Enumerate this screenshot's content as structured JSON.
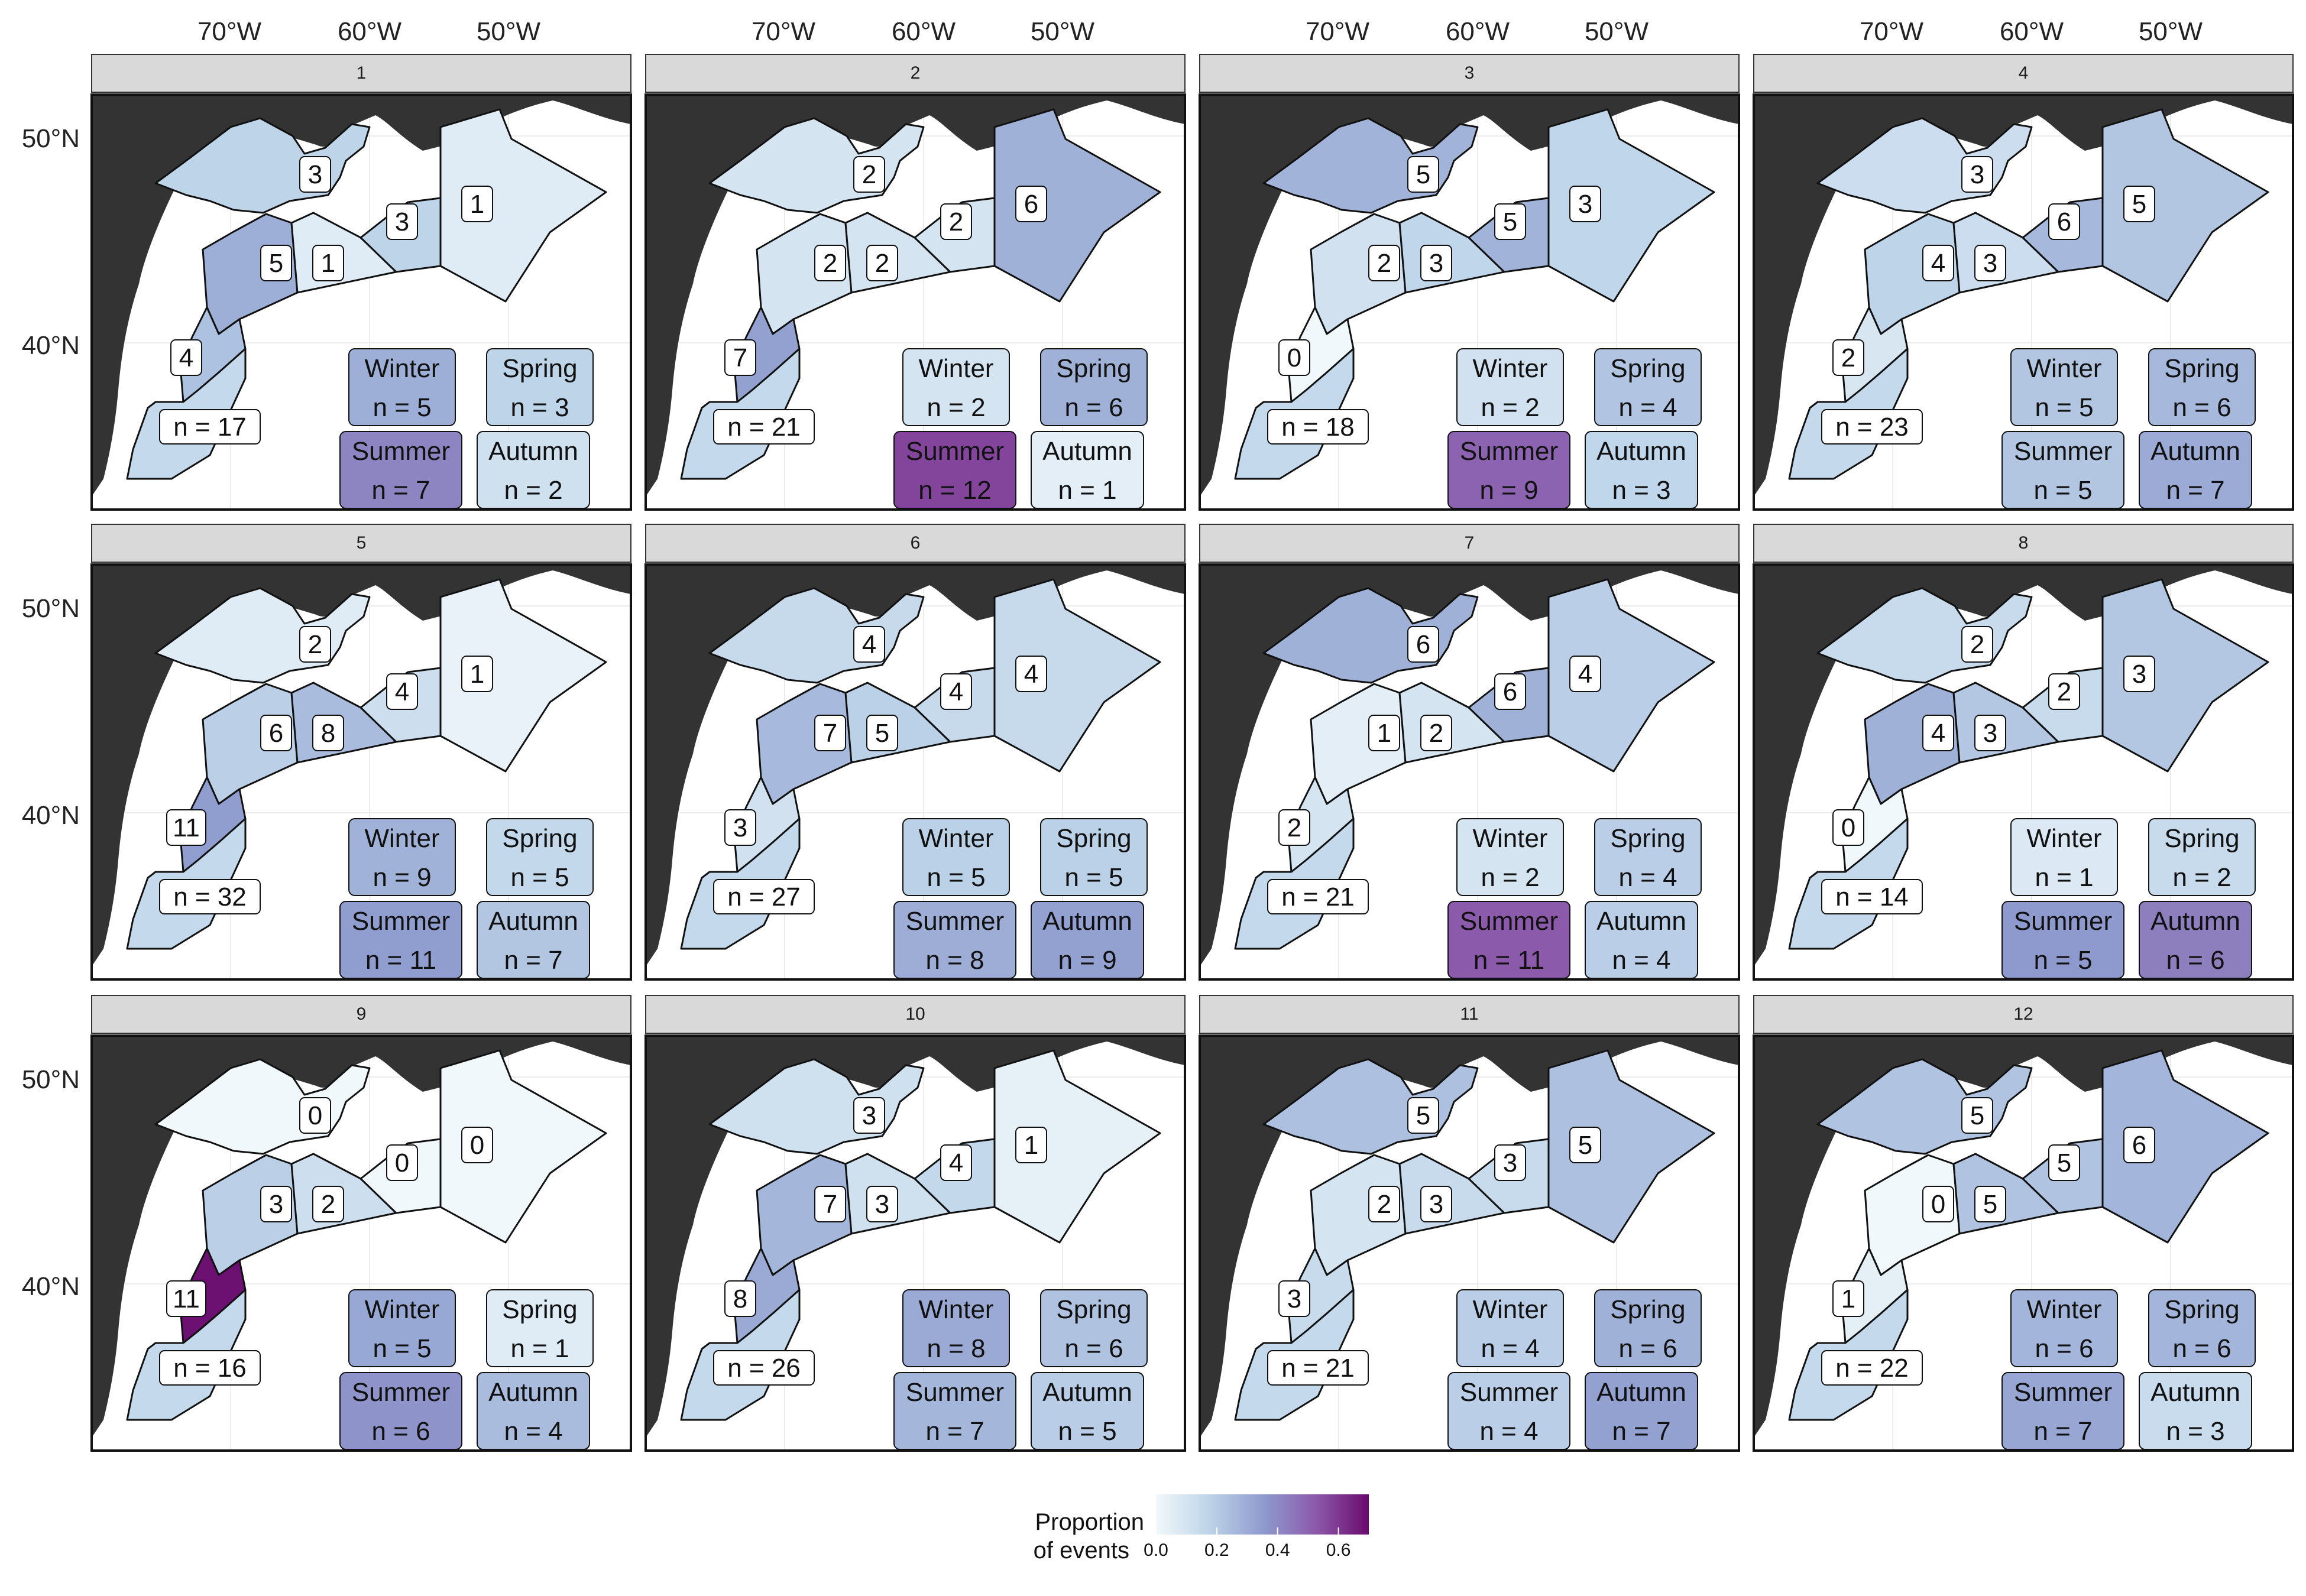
{
  "chart_data": {
    "type": "choropleth-map-facets",
    "x_tick_labels": [
      "70°W",
      "60°W",
      "50°W"
    ],
    "y_tick_labels": [
      "50°N",
      "40°N"
    ],
    "legend": {
      "title_line1": "Proportion",
      "title_line2": "of events",
      "ticks": [
        "0.0",
        "0.2",
        "0.4",
        "0.6"
      ],
      "range": [
        0,
        0.7
      ],
      "colors": [
        "#f1f8fb",
        "#bed4e9",
        "#8e9cce",
        "#8c5aab",
        "#6a0a6e"
      ],
      "placement": "bottom"
    },
    "season_names": [
      "Winter",
      "Spring",
      "Summer",
      "Autumn"
    ],
    "region_order": [
      "laurentian",
      "newfoundland",
      "gulf_west",
      "gulf_east",
      "cabot",
      "scotian",
      "gulf_maine"
    ],
    "panels": [
      {
        "label": "1",
        "total": "n = 17",
        "regions": [
          3,
          1,
          5,
          1,
          3,
          4,
          null
        ],
        "seasons": [
          5,
          3,
          7,
          2
        ]
      },
      {
        "label": "2",
        "total": "n = 21",
        "regions": [
          2,
          6,
          2,
          2,
          2,
          7,
          null
        ],
        "seasons": [
          2,
          6,
          12,
          1
        ]
      },
      {
        "label": "3",
        "total": "n = 18",
        "regions": [
          5,
          3,
          2,
          3,
          5,
          0,
          null
        ],
        "seasons": [
          2,
          4,
          9,
          3
        ]
      },
      {
        "label": "4",
        "total": "n = 23",
        "regions": [
          3,
          5,
          4,
          3,
          6,
          2,
          null
        ],
        "seasons": [
          5,
          6,
          5,
          7
        ]
      },
      {
        "label": "5",
        "total": "n = 32",
        "regions": [
          2,
          1,
          6,
          8,
          4,
          11,
          null
        ],
        "seasons": [
          9,
          5,
          11,
          7
        ]
      },
      {
        "label": "6",
        "total": "n = 27",
        "regions": [
          4,
          4,
          7,
          5,
          4,
          3,
          null
        ],
        "seasons": [
          5,
          5,
          8,
          9
        ]
      },
      {
        "label": "7",
        "total": "n = 21",
        "regions": [
          6,
          4,
          1,
          2,
          6,
          2,
          null
        ],
        "seasons": [
          2,
          4,
          11,
          4
        ]
      },
      {
        "label": "8",
        "total": "n = 14",
        "regions": [
          2,
          3,
          4,
          3,
          2,
          0,
          null
        ],
        "seasons": [
          1,
          2,
          5,
          6
        ]
      },
      {
        "label": "9",
        "total": "n = 16",
        "regions": [
          0,
          0,
          3,
          2,
          0,
          11,
          null
        ],
        "seasons": [
          5,
          1,
          6,
          4
        ]
      },
      {
        "label": "10",
        "total": "n = 26",
        "regions": [
          3,
          1,
          7,
          3,
          4,
          8,
          null
        ],
        "seasons": [
          8,
          6,
          7,
          5
        ]
      },
      {
        "label": "11",
        "total": "n = 21",
        "regions": [
          5,
          5,
          2,
          3,
          3,
          3,
          null
        ],
        "seasons": [
          4,
          6,
          4,
          7
        ]
      },
      {
        "label": "12",
        "total": "n = 22",
        "regions": [
          5,
          6,
          0,
          5,
          5,
          1,
          null
        ],
        "seasons": [
          6,
          6,
          7,
          3
        ]
      }
    ]
  }
}
